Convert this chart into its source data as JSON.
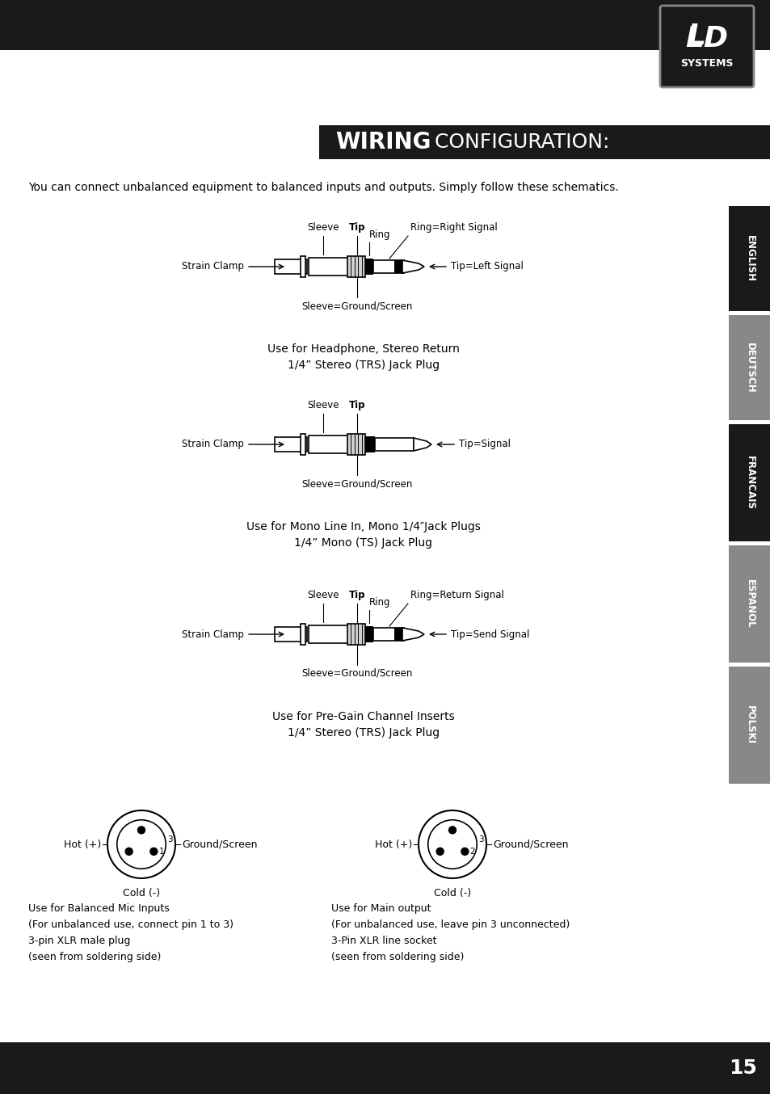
{
  "title_bold": "WIRING",
  "title_regular": " CONFIGURATION:",
  "subtitle": "You can connect unbalanced equipment to balanced inputs and outputs. Simply follow these schematics.",
  "bg_color": "#ffffff",
  "header_bg": "#1a1a1a",
  "title_bg": "#1a1a1a",
  "sidebar_colors": {
    "ENGLISH": "#1a1a1a",
    "DEUTSCH": "#888888",
    "FRANCAIS": "#1a1a1a",
    "ESPANOL": "#888888",
    "POLSKI": "#888888"
  },
  "diagrams": [
    {
      "labels_top": [
        "Sleeve",
        "Tip",
        "Ring",
        "Ring=Right Signal"
      ],
      "labels_bottom": [
        "Sleeve=Ground/Screen"
      ],
      "label_right": "Tip=Left Signal",
      "label_left": "Strain Clamp",
      "caption": [
        "Use for Headphone, Stereo Return",
        "1/4” Stereo (TRS) Jack Plug"
      ],
      "type": "TRS"
    },
    {
      "labels_top": [
        "Sleeve",
        "Tip"
      ],
      "labels_bottom": [
        "Sleeve=Ground/Screen"
      ],
      "label_right": "Tip=Signal",
      "label_left": "Strain Clamp",
      "caption": [
        "Use for Mono Line In, Mono 1/4″Jack Plugs",
        "1/4” Mono (TS) Jack Plug"
      ],
      "type": "TS"
    },
    {
      "labels_top": [
        "Sleeve",
        "Tip",
        "Ring",
        "Ring=Return Signal"
      ],
      "labels_bottom": [
        "Sleeve=Ground/Screen"
      ],
      "label_right": "Tip=Send Signal",
      "label_left": "Strain Clamp",
      "caption": [
        "Use for Pre-Gain Channel Inserts",
        "1/4” Stereo (TRS) Jack Plug"
      ],
      "type": "TRS"
    }
  ],
  "xlr_left": {
    "title": "Hot (+)",
    "label_right": "Ground/Screen",
    "label_bottom": "Cold (-)",
    "pin1": "1",
    "pin3": "3",
    "caption": [
      "Use for Balanced Mic Inputs",
      "(For unbalanced use, connect pin 1 to 3)",
      "3-pin XLR male plug",
      "(seen from soldering side)"
    ]
  },
  "xlr_right": {
    "title": "Hot (+)",
    "label_right": "Ground/Screen",
    "label_bottom": "Cold (-)",
    "pin2": "2",
    "pin3": "3",
    "caption": [
      "Use for Main output",
      "(For unbalanced use, leave pin 3 unconnected)",
      "3-Pin XLR line socket",
      "(seen from soldering side)"
    ]
  },
  "footer_bg": "#1a1a1a",
  "page_number": "15"
}
